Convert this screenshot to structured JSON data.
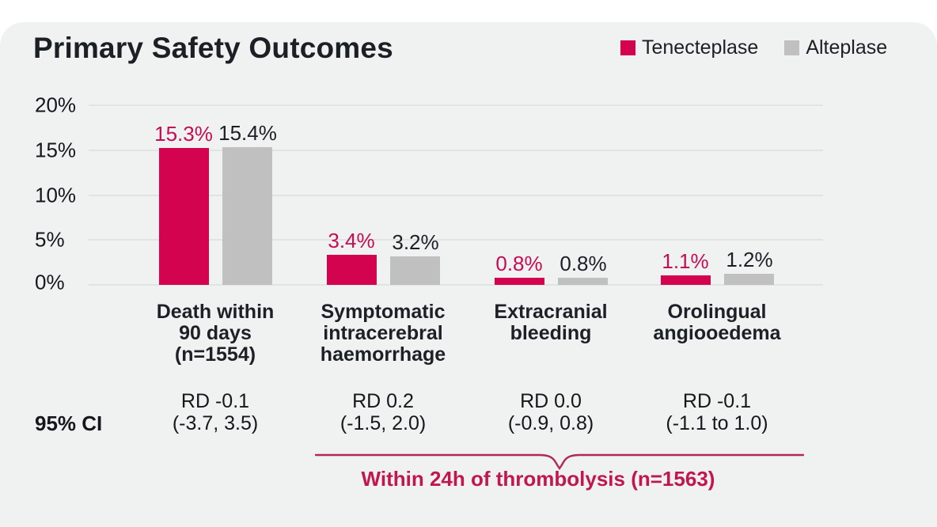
{
  "title": "Primary Safety Outcomes",
  "colors": {
    "background_card": "#f0f1f1",
    "tenecteplase_red": "#d4034f",
    "alteplase_gray": "#c0c0c0",
    "value_label_red": "#c50d52",
    "text_dark": "#1b2025",
    "bracket_red": "#b02b54"
  },
  "chart_data": {
    "type": "bar",
    "title": "Primary Safety Outcomes",
    "categories": [
      "Death within 90 days (n=1554)",
      "Symptomatic intracerebral haemorrhage",
      "Extracranial bleeding",
      "Orolingual angiooedema"
    ],
    "categories_display": [
      "Death within\n90 days\n(n=1554)",
      "Symptomatic\nintracerebral\nhaemorrhage",
      "Extracranial\nbleeding",
      "Orolingual\nangiooedema"
    ],
    "series": [
      {
        "name": "Tenecteplase",
        "values": [
          15.3,
          3.4,
          0.8,
          1.1
        ],
        "color": "#d4034f"
      },
      {
        "name": "Alteplase",
        "values": [
          15.4,
          3.2,
          0.8,
          1.2
        ],
        "color": "#c0c0c0"
      }
    ],
    "value_labels": [
      [
        "15.3%",
        "15.4%"
      ],
      [
        "3.4%",
        "3.2%"
      ],
      [
        "0.8%",
        "0.8%"
      ],
      [
        "1.1%",
        "1.2%"
      ]
    ],
    "xlabel": "",
    "ylabel": "",
    "ylim": [
      0,
      20
    ],
    "yticks": [
      "20%",
      "15%",
      "10%",
      "5%",
      "0%"
    ],
    "grid": "horizontal",
    "legend_position": "top-right",
    "risk_difference_row": {
      "row_label": "95% CI",
      "entries": [
        "RD -0.1\n(-3.7, 3.5)",
        "RD 0.2\n(-1.5, 2.0)",
        "RD 0.0\n(-0.9, 0.8)",
        "RD -0.1\n(-1.1 to 1.0)"
      ]
    },
    "annotation": {
      "bracket_label": "Within 24h of thrombolysis (n=1563)",
      "bracket_spans_categories": [
        "Symptomatic intracerebral haemorrhage",
        "Extracranial bleeding",
        "Orolingual angiooedema"
      ]
    }
  }
}
